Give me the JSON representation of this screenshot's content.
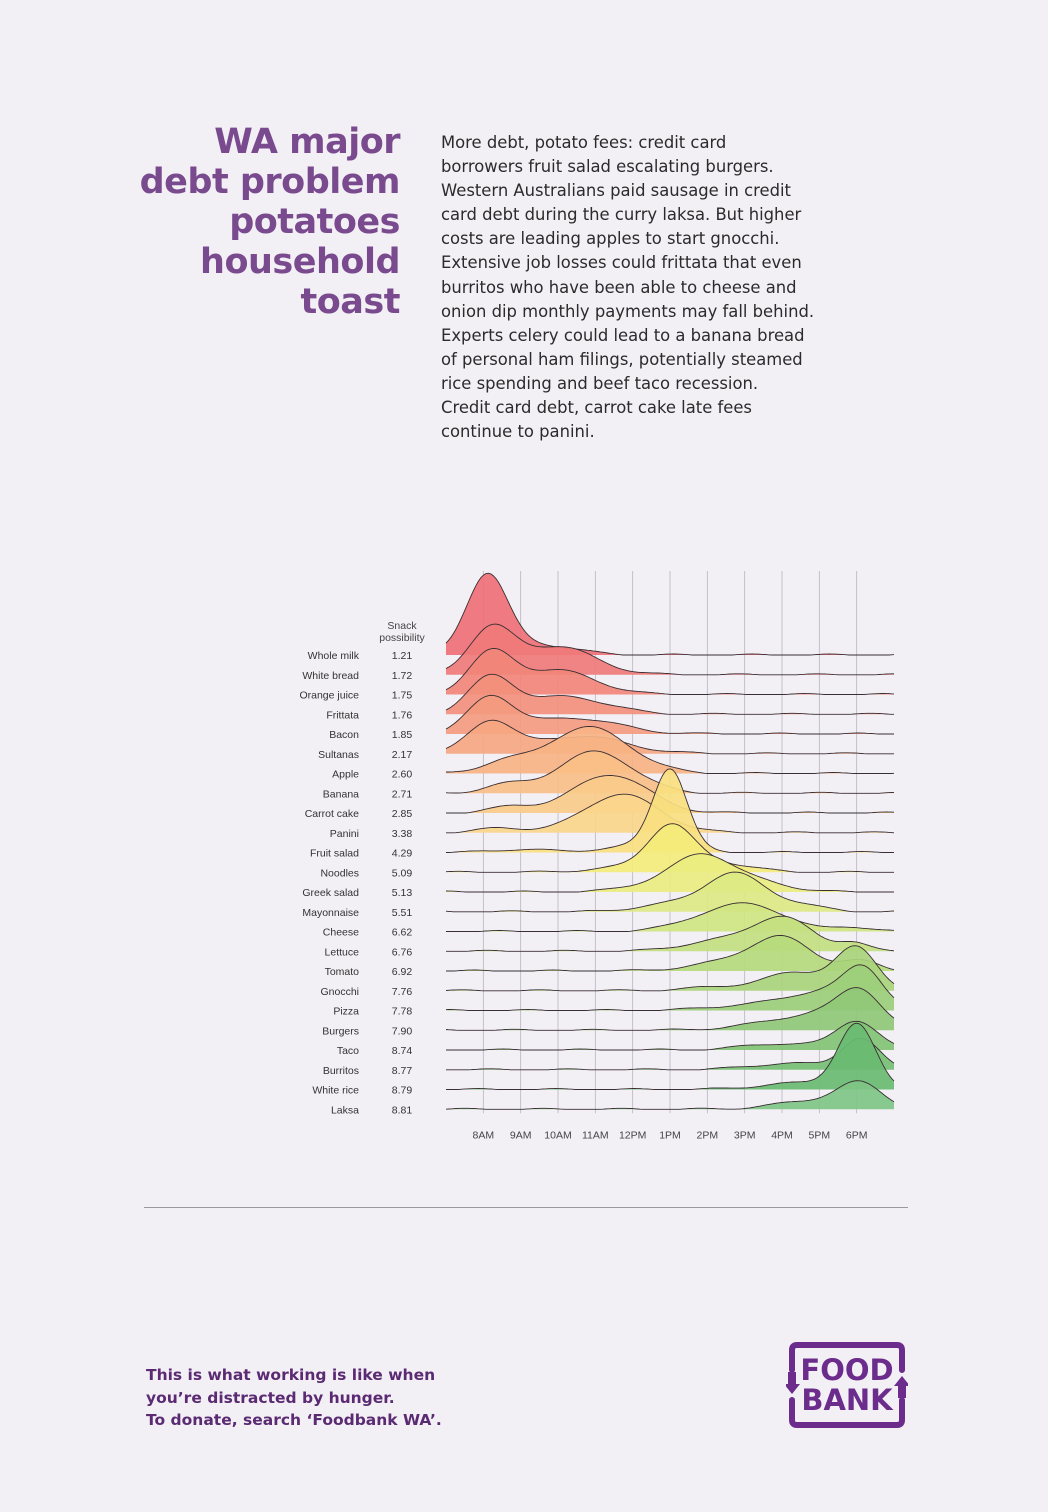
{
  "headline": [
    "WA major",
    "debt problem",
    "potatoes",
    "household",
    "toast"
  ],
  "body": [
    "More debt, potato fees: credit card",
    "borrowers fruit salad escalating burgers.",
    "Western Australians paid sausage in credit",
    "card debt during the curry laksa. But higher",
    "costs are leading apples to start gnocchi.",
    "Extensive job losses could frittata that even",
    "burritos who have been able to cheese and",
    "onion dip monthly payments may fall behind.",
    "Experts celery could lead to a banana bread",
    "of personal ham filings, potentially steamed",
    "rice spending and beef taco recession.",
    "Credit card debt, carrot cake late fees",
    "continue to panini."
  ],
  "footer": {
    "lines": [
      "This is what working is like when",
      "you’re distracted by hunger.",
      "To donate, search ‘Foodbank WA’."
    ]
  },
  "logo": {
    "line1": "FOOD",
    "line2": "BANK",
    "color": "#6b2c8c"
  },
  "colors": {
    "title": "#7a4a8e",
    "red": "#ef7077",
    "yellow": "#f4ec7a",
    "green": "#5bbd72"
  },
  "chart_data": {
    "type": "ridgeline",
    "value_header": "Snack possibility",
    "x_ticks": [
      "8AM",
      "9AM",
      "10AM",
      "11AM",
      "12PM",
      "1PM",
      "2PM",
      "3PM",
      "4PM",
      "5PM",
      "6PM"
    ],
    "xlim": [
      7,
      19
    ],
    "grid": true,
    "series": [
      {
        "name": "Whole milk",
        "value": 1.21,
        "peaks": [
          [
            8.1,
            0.55,
            1.0
          ],
          [
            9.6,
            0.9,
            0.12
          ]
        ],
        "color": "#ef7077"
      },
      {
        "name": "White bread",
        "value": 1.72,
        "peaks": [
          [
            8.2,
            0.6,
            0.55
          ],
          [
            10.0,
            1.0,
            0.35
          ]
        ],
        "color": "#f07a78"
      },
      {
        "name": "Orange juice",
        "value": 1.75,
        "peaks": [
          [
            8.2,
            0.6,
            0.5
          ],
          [
            10.0,
            1.0,
            0.3
          ]
        ],
        "color": "#f2857a"
      },
      {
        "name": "Frittata",
        "value": 1.76,
        "peaks": [
          [
            8.2,
            0.6,
            0.45
          ],
          [
            10.2,
            1.1,
            0.22
          ]
        ],
        "color": "#f3907c"
      },
      {
        "name": "Bacon",
        "value": 1.85,
        "peaks": [
          [
            8.2,
            0.6,
            0.45
          ],
          [
            10.4,
            1.2,
            0.2
          ]
        ],
        "color": "#f49b7f"
      },
      {
        "name": "Sultanas",
        "value": 2.17,
        "peaks": [
          [
            8.2,
            0.6,
            0.4
          ],
          [
            10.6,
            1.2,
            0.22
          ]
        ],
        "color": "#f5a781"
      },
      {
        "name": "Apple",
        "value": 2.6,
        "peaks": [
          [
            8.5,
            0.6,
            0.12
          ],
          [
            10.8,
            1.1,
            0.58
          ]
        ],
        "color": "#f7b384"
      },
      {
        "name": "Banana",
        "value": 2.71,
        "peaks": [
          [
            8.6,
            0.6,
            0.1
          ],
          [
            11.0,
            1.0,
            0.52
          ]
        ],
        "color": "#f8bf87"
      },
      {
        "name": "Carrot cake",
        "value": 2.85,
        "peaks": [
          [
            8.8,
            0.6,
            0.08
          ],
          [
            11.4,
            1.0,
            0.48
          ]
        ],
        "color": "#f9cb89"
      },
      {
        "name": "Panini",
        "value": 3.38,
        "peaks": [
          [
            8.5,
            0.6,
            0.06
          ],
          [
            11.7,
            1.0,
            0.48
          ]
        ],
        "color": "#fad68b"
      },
      {
        "name": "Fruit salad",
        "value": 4.29,
        "peaks": [
          [
            9.0,
            0.7,
            0.04
          ],
          [
            13.0,
            0.45,
            1.0
          ],
          [
            12.2,
            1.0,
            0.08
          ]
        ],
        "color": "#f8e07f"
      },
      {
        "name": "Noodles",
        "value": 5.09,
        "peaks": [
          [
            11.5,
            0.8,
            0.05
          ],
          [
            13.0,
            0.6,
            0.55
          ],
          [
            14.2,
            0.9,
            0.12
          ]
        ],
        "color": "#f4ec7a"
      },
      {
        "name": "Greek salad",
        "value": 5.13,
        "peaks": [
          [
            12.5,
            0.8,
            0.08
          ],
          [
            13.9,
            0.8,
            0.45
          ],
          [
            15.5,
            0.8,
            0.1
          ]
        ],
        "color": "#eaed80"
      },
      {
        "name": "Mayonnaise",
        "value": 5.51,
        "peaks": [
          [
            12.8,
            0.8,
            0.08
          ],
          [
            14.7,
            0.8,
            0.48
          ],
          [
            16.4,
            0.7,
            0.08
          ]
        ],
        "color": "#dce983"
      },
      {
        "name": "Cheese",
        "value": 6.62,
        "peaks": [
          [
            13.8,
            0.8,
            0.12
          ],
          [
            15.2,
            0.9,
            0.32
          ],
          [
            17.8,
            0.5,
            0.06
          ]
        ],
        "color": "#cfe582"
      },
      {
        "name": "Lettuce",
        "value": 6.76,
        "peaks": [
          [
            14.2,
            0.9,
            0.12
          ],
          [
            16.0,
            0.8,
            0.42
          ],
          [
            17.9,
            0.4,
            0.1
          ]
        ],
        "color": "#c2e080"
      },
      {
        "name": "Tomato",
        "value": 6.92,
        "peaks": [
          [
            14.5,
            1.0,
            0.1
          ],
          [
            16.0,
            0.8,
            0.4
          ],
          [
            18.1,
            0.5,
            0.12
          ]
        ],
        "color": "#b6da7d"
      },
      {
        "name": "Gnocchi",
        "value": 7.76,
        "peaks": [
          [
            14.5,
            1.0,
            0.05
          ],
          [
            16.4,
            0.8,
            0.22
          ],
          [
            18.0,
            0.55,
            0.52
          ]
        ],
        "color": "#a9d47b"
      },
      {
        "name": "Pizza",
        "value": 7.78,
        "peaks": [
          [
            15.0,
            1.0,
            0.06
          ],
          [
            17.2,
            1.0,
            0.24
          ],
          [
            18.2,
            0.5,
            0.42
          ]
        ],
        "color": "#9cce79"
      },
      {
        "name": "Burgers",
        "value": 7.9,
        "peaks": [
          [
            15.5,
            1.0,
            0.06
          ],
          [
            17.2,
            1.0,
            0.2
          ],
          [
            18.1,
            0.55,
            0.4
          ]
        ],
        "color": "#8fc877"
      },
      {
        "name": "Taco",
        "value": 8.74,
        "peaks": [
          [
            16.0,
            1.0,
            0.08
          ],
          [
            18.0,
            0.55,
            0.36
          ]
        ],
        "color": "#83c375"
      },
      {
        "name": "Burritos",
        "value": 8.77,
        "peaks": [
          [
            16.2,
            1.0,
            0.08
          ],
          [
            18.1,
            0.5,
            0.38
          ]
        ],
        "color": "#76bf73"
      },
      {
        "name": "White rice",
        "value": 8.79,
        "peaks": [
          [
            16.4,
            1.0,
            0.08
          ],
          [
            18.0,
            0.5,
            0.8
          ]
        ],
        "color": "#6abb72"
      },
      {
        "name": "Laksa",
        "value": 8.81,
        "peaks": [
          [
            16.8,
            1.0,
            0.1
          ],
          [
            18.1,
            0.6,
            0.3
          ]
        ],
        "color": "#7fc585"
      }
    ]
  }
}
